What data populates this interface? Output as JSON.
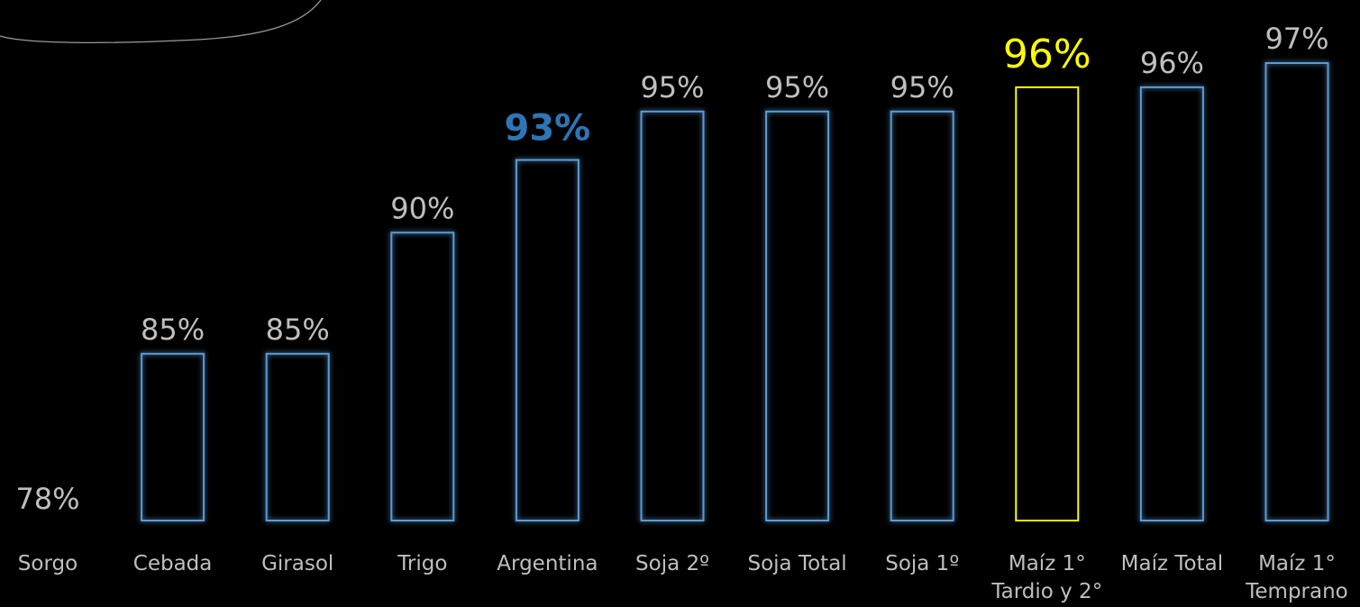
{
  "chart_data": {
    "type": "bar",
    "categories": [
      [
        "Sorgo"
      ],
      [
        "Cebada"
      ],
      [
        "Girasol"
      ],
      [
        "Trigo"
      ],
      [
        "Argentina"
      ],
      [
        "Soja 2º"
      ],
      [
        "Soja Total"
      ],
      [
        "Soja 1º"
      ],
      [
        "Maíz 1°",
        "Tardio y 2°"
      ],
      [
        "Maíz Total"
      ],
      [
        "Maíz 1°",
        "Temprano"
      ]
    ],
    "values": [
      78,
      85,
      85,
      90,
      93,
      95,
      95,
      95,
      96,
      96,
      97
    ],
    "value_labels": [
      "78%",
      "85%",
      "85%",
      "90%",
      "93%",
      "95%",
      "95%",
      "95%",
      "96%",
      "96%",
      "97%"
    ],
    "highlights": {
      "4": {
        "color": "#2e75b6",
        "bold": true
      },
      "8": {
        "color": "#ffff00",
        "bold": false
      }
    },
    "colors": {
      "bar_outline": "#5b9bd5",
      "bar_glow": "#1f6fd6",
      "label": "#bfbfbf",
      "highlight_national": "#2e75b6",
      "highlight_selected": "#ffff00"
    }
  }
}
